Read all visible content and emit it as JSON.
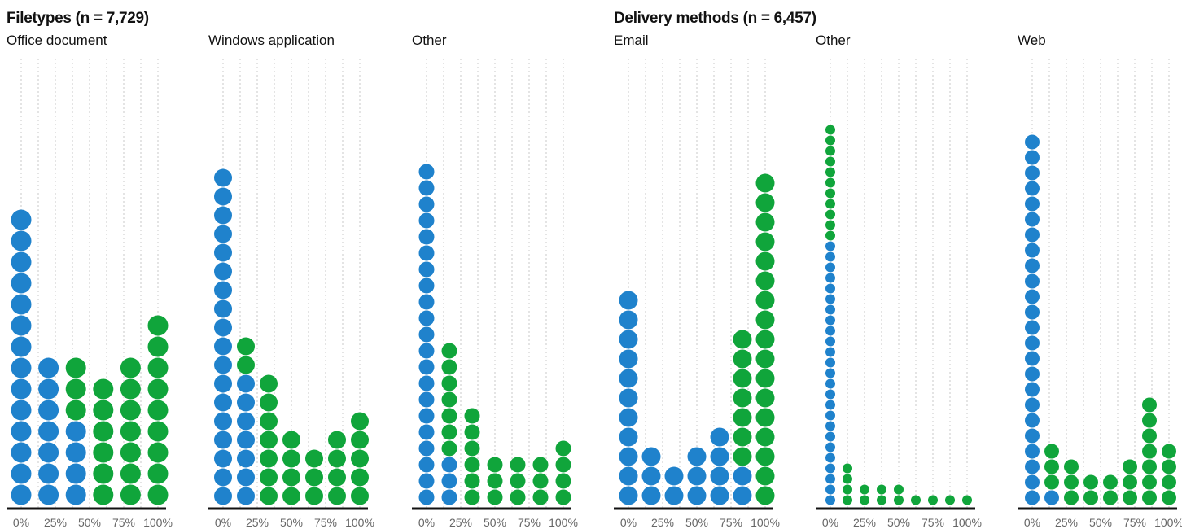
{
  "headings": {
    "filetypes": "Filetypes (n = 7,729)",
    "delivery": "Delivery methods (n = 6,457)"
  },
  "colors": {
    "blue": "#1f82cc",
    "green": "#10a53b",
    "axis": "#111111",
    "grid": "#c8c8c8",
    "tick_text": "#666666"
  },
  "chart_data": [
    {
      "type": "scatter",
      "group": "Filetypes (n = 7,729)",
      "title": "Office document",
      "x_tick_labels": [
        "0%",
        "25%",
        "50%",
        "75%",
        "100%"
      ],
      "xlim": [
        0,
        100
      ],
      "dot_diameter": 26,
      "columns": [
        {
          "blue": 14,
          "green": 0
        },
        {
          "blue": 7,
          "green": 0
        },
        {
          "blue": 4,
          "green": 3
        },
        {
          "blue": 0,
          "green": 6
        },
        {
          "blue": 0,
          "green": 7
        },
        {
          "blue": 0,
          "green": 9
        }
      ]
    },
    {
      "type": "scatter",
      "group": "Filetypes (n = 7,729)",
      "title": "Windows application",
      "x_tick_labels": [
        "0%",
        "25%",
        "50%",
        "75%",
        "100%"
      ],
      "xlim": [
        0,
        100
      ],
      "dot_diameter": 23,
      "columns": [
        {
          "blue": 18,
          "green": 0
        },
        {
          "blue": 7,
          "green": 2
        },
        {
          "blue": 0,
          "green": 7
        },
        {
          "blue": 0,
          "green": 4
        },
        {
          "blue": 0,
          "green": 3
        },
        {
          "blue": 0,
          "green": 4
        },
        {
          "blue": 0,
          "green": 5
        }
      ]
    },
    {
      "type": "scatter",
      "group": "Filetypes (n = 7,729)",
      "title": "Other",
      "x_tick_labels": [
        "0%",
        "25%",
        "50%",
        "75%",
        "100%"
      ],
      "xlim": [
        0,
        100
      ],
      "dot_diameter": 20,
      "columns": [
        {
          "blue": 21,
          "green": 0
        },
        {
          "blue": 3,
          "green": 7
        },
        {
          "blue": 0,
          "green": 6
        },
        {
          "blue": 0,
          "green": 3
        },
        {
          "blue": 0,
          "green": 3
        },
        {
          "blue": 0,
          "green": 3
        },
        {
          "blue": 0,
          "green": 4
        }
      ]
    },
    {
      "type": "scatter",
      "group": "Delivery methods (n = 6,457)",
      "title": "Email",
      "x_tick_labels": [
        "0%",
        "25%",
        "50%",
        "75%",
        "100%"
      ],
      "xlim": [
        0,
        100
      ],
      "dot_diameter": 24,
      "columns": [
        {
          "blue": 11,
          "green": 0
        },
        {
          "blue": 3,
          "green": 0
        },
        {
          "blue": 2,
          "green": 0
        },
        {
          "blue": 3,
          "green": 0
        },
        {
          "blue": 4,
          "green": 0
        },
        {
          "blue": 2,
          "green": 7
        },
        {
          "blue": 0,
          "green": 17
        }
      ]
    },
    {
      "type": "scatter",
      "group": "Delivery methods (n = 6,457)",
      "title": "Other",
      "x_tick_labels": [
        "0%",
        "25%",
        "50%",
        "75%",
        "100%"
      ],
      "xlim": [
        0,
        100
      ],
      "dot_diameter": 13,
      "columns": [
        {
          "blue": 25,
          "green": 11
        },
        {
          "blue": 0,
          "green": 4
        },
        {
          "blue": 0,
          "green": 2
        },
        {
          "blue": 0,
          "green": 2
        },
        {
          "blue": 0,
          "green": 2
        },
        {
          "blue": 0,
          "green": 1
        },
        {
          "blue": 0,
          "green": 1
        },
        {
          "blue": 0,
          "green": 1
        },
        {
          "blue": 0,
          "green": 1
        }
      ]
    },
    {
      "type": "scatter",
      "group": "Delivery methods (n = 6,457)",
      "title": "Web",
      "x_tick_labels": [
        "0%",
        "25%",
        "50%",
        "75%",
        "100%"
      ],
      "xlim": [
        0,
        100
      ],
      "dot_diameter": 19,
      "columns": [
        {
          "blue": 24,
          "green": 0
        },
        {
          "blue": 1,
          "green": 3
        },
        {
          "blue": 0,
          "green": 3
        },
        {
          "blue": 0,
          "green": 2
        },
        {
          "blue": 0,
          "green": 2
        },
        {
          "blue": 0,
          "green": 3
        },
        {
          "blue": 0,
          "green": 7
        },
        {
          "blue": 0,
          "green": 4
        }
      ]
    }
  ]
}
